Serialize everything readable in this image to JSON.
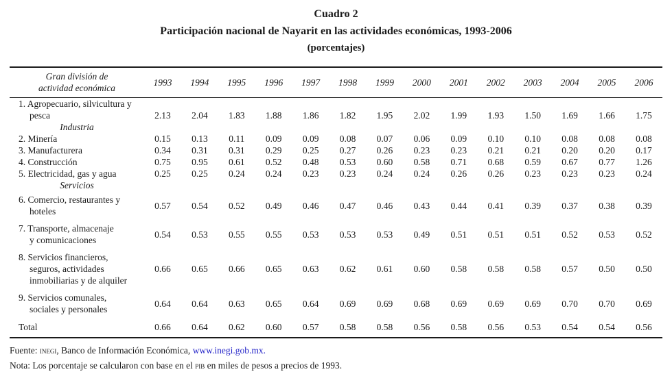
{
  "title": {
    "line1": "Cuadro 2",
    "line2": "Participación nacional de Nayarit en las actividades económicas, 1993-2006",
    "line3": "(porcentajes)"
  },
  "colors": {
    "text": "#1a1a1a",
    "link_blue": "#2424c8",
    "background": "#ffffff"
  },
  "table": {
    "header": {
      "line1": "Gran división de",
      "line2": "actividad económica"
    },
    "years": [
      "1993",
      "1994",
      "1995",
      "1996",
      "1997",
      "1998",
      "1999",
      "2000",
      "2001",
      "2002",
      "2003",
      "2004",
      "2005",
      "2006"
    ],
    "rows": [
      {
        "type": "data",
        "name": "row-agropecuario",
        "label_lines": [
          "1. Agropecuario, silvicultura y",
          "pesca"
        ],
        "valign": "bottom",
        "values": [
          "2.13",
          "2.04",
          "1.83",
          "1.88",
          "1.86",
          "1.82",
          "1.95",
          "2.02",
          "1.99",
          "1.93",
          "1.50",
          "1.69",
          "1.66",
          "1.75"
        ]
      },
      {
        "type": "section",
        "name": "section-industria",
        "label": "Industria"
      },
      {
        "type": "data",
        "name": "row-mineria",
        "label_lines": [
          "2. Minería"
        ],
        "values": [
          "0.15",
          "0.13",
          "0.11",
          "0.09",
          "0.09",
          "0.08",
          "0.07",
          "0.06",
          "0.09",
          "0.10",
          "0.10",
          "0.08",
          "0.08",
          "0.08"
        ]
      },
      {
        "type": "data",
        "name": "row-manufacturera",
        "label_lines": [
          "3. Manufacturera"
        ],
        "values": [
          "0.34",
          "0.31",
          "0.31",
          "0.29",
          "0.25",
          "0.27",
          "0.26",
          "0.23",
          "0.23",
          "0.21",
          "0.21",
          "0.20",
          "0.20",
          "0.17"
        ]
      },
      {
        "type": "data",
        "name": "row-construccion",
        "label_lines": [
          "4. Construcción"
        ],
        "values": [
          "0.75",
          "0.95",
          "0.61",
          "0.52",
          "0.48",
          "0.53",
          "0.60",
          "0.58",
          "0.71",
          "0.68",
          "0.59",
          "0.67",
          "0.77",
          "1.26"
        ]
      },
      {
        "type": "data",
        "name": "row-electricidad",
        "label_lines": [
          "5. Electricidad, gas y agua"
        ],
        "values": [
          "0.25",
          "0.25",
          "0.24",
          "0.24",
          "0.23",
          "0.23",
          "0.24",
          "0.24",
          "0.26",
          "0.26",
          "0.23",
          "0.23",
          "0.23",
          "0.24"
        ]
      },
      {
        "type": "section",
        "name": "section-servicios",
        "label": "Servicios"
      },
      {
        "type": "data",
        "name": "row-comercio",
        "pad": true,
        "label_lines": [
          "6. Comercio, restaurantes y",
          "hoteles"
        ],
        "values": [
          "0.57",
          "0.54",
          "0.52",
          "0.49",
          "0.46",
          "0.47",
          "0.46",
          "0.43",
          "0.44",
          "0.41",
          "0.39",
          "0.37",
          "0.38",
          "0.39"
        ]
      },
      {
        "type": "data",
        "name": "row-transporte",
        "pad": true,
        "label_lines": [
          "7. Transporte, almacenaje",
          "y comunicaciones"
        ],
        "values": [
          "0.54",
          "0.53",
          "0.55",
          "0.55",
          "0.53",
          "0.53",
          "0.53",
          "0.49",
          "0.51",
          "0.51",
          "0.51",
          "0.52",
          "0.53",
          "0.52"
        ]
      },
      {
        "type": "data",
        "name": "row-financieros",
        "pad": true,
        "label_lines": [
          "8. Servicios financieros,",
          "seguros, actividades",
          "inmobiliarias y de alquiler"
        ],
        "values": [
          "0.66",
          "0.65",
          "0.66",
          "0.65",
          "0.63",
          "0.62",
          "0.61",
          "0.60",
          "0.58",
          "0.58",
          "0.58",
          "0.57",
          "0.50",
          "0.50"
        ]
      },
      {
        "type": "data",
        "name": "row-comunales",
        "pad": true,
        "label_lines": [
          "9. Servicios comunales,",
          "sociales y personales"
        ],
        "values": [
          "0.64",
          "0.64",
          "0.63",
          "0.65",
          "0.64",
          "0.69",
          "0.69",
          "0.68",
          "0.69",
          "0.69",
          "0.69",
          "0.70",
          "0.70",
          "0.69"
        ]
      },
      {
        "type": "data",
        "name": "row-total",
        "total": true,
        "label_lines": [
          "Total"
        ],
        "values": [
          "0.66",
          "0.64",
          "0.62",
          "0.60",
          "0.57",
          "0.58",
          "0.58",
          "0.56",
          "0.58",
          "0.56",
          "0.53",
          "0.54",
          "0.54",
          "0.56"
        ]
      }
    ]
  },
  "footer": {
    "fuente": {
      "prefix": "Fuente: ",
      "org": "inegi",
      "mid": ", Banco de Información Económica, ",
      "link": "www.inegi.gob.mx."
    },
    "nota": {
      "prefix": "Nota: Los porcentaje se calcularon con base en el ",
      "pib": "pib",
      "suffix": " en miles de pesos a precios de 1993."
    }
  }
}
